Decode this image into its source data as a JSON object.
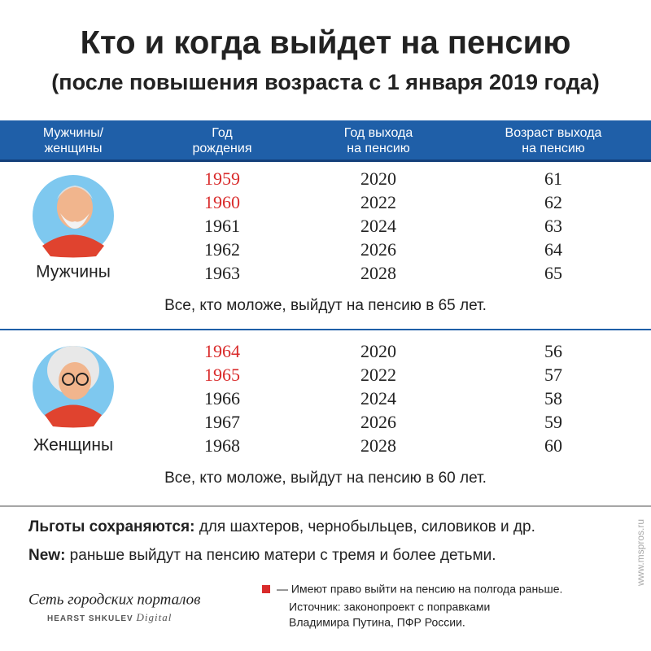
{
  "header": {
    "title": "Кто и когда выйдет на пенсию",
    "subtitle": "(после повышения возраста с 1 января 2019 года)"
  },
  "table": {
    "columns": [
      [
        "Мужчины/",
        "женщины"
      ],
      [
        "Год",
        "рождения"
      ],
      [
        "Год выхода",
        "на пенсию"
      ],
      [
        "Возраст выхода",
        "на пенсию"
      ]
    ],
    "highlight_color": "#d92b2b",
    "groups": [
      {
        "label": "Мужчины",
        "rows": [
          {
            "birth": 1959,
            "retire": 2020,
            "age": 61,
            "highlight": true
          },
          {
            "birth": 1960,
            "retire": 2022,
            "age": 62,
            "highlight": true
          },
          {
            "birth": 1961,
            "retire": 2024,
            "age": 63,
            "highlight": false
          },
          {
            "birth": 1962,
            "retire": 2026,
            "age": 64,
            "highlight": false
          },
          {
            "birth": 1963,
            "retire": 2028,
            "age": 65,
            "highlight": false
          }
        ],
        "note": "Все, кто моложе, выйдут на пенсию в 65 лет."
      },
      {
        "label": "Женщины",
        "rows": [
          {
            "birth": 1964,
            "retire": 2020,
            "age": 56,
            "highlight": true
          },
          {
            "birth": 1965,
            "retire": 2022,
            "age": 57,
            "highlight": true
          },
          {
            "birth": 1966,
            "retire": 2024,
            "age": 58,
            "highlight": false
          },
          {
            "birth": 1967,
            "retire": 2026,
            "age": 59,
            "highlight": false
          },
          {
            "birth": 1968,
            "retire": 2028,
            "age": 60,
            "highlight": false
          }
        ],
        "note": "Все, кто моложе, выйдут на пенсию в 60 лет."
      }
    ]
  },
  "notes": [
    {
      "bold": "Льготы сохраняются:",
      "text": " для шахтеров, чернобыльцев, силовиков и др."
    },
    {
      "bold": "New:",
      "text": " раньше выйдут на пенсию матери с тремя и более детьми."
    }
  ],
  "logo": {
    "name": "Сеть городских порталов",
    "brand": "HEARST SHKULEV",
    "suffix": "Digital"
  },
  "legend": {
    "text": "— Имеют право выйти на пенсию на полгода раньше.",
    "source": [
      "Источник: законопроект с поправками",
      "Владимира Путина, ПФР России."
    ]
  },
  "watermark": "www.mspros.ru"
}
